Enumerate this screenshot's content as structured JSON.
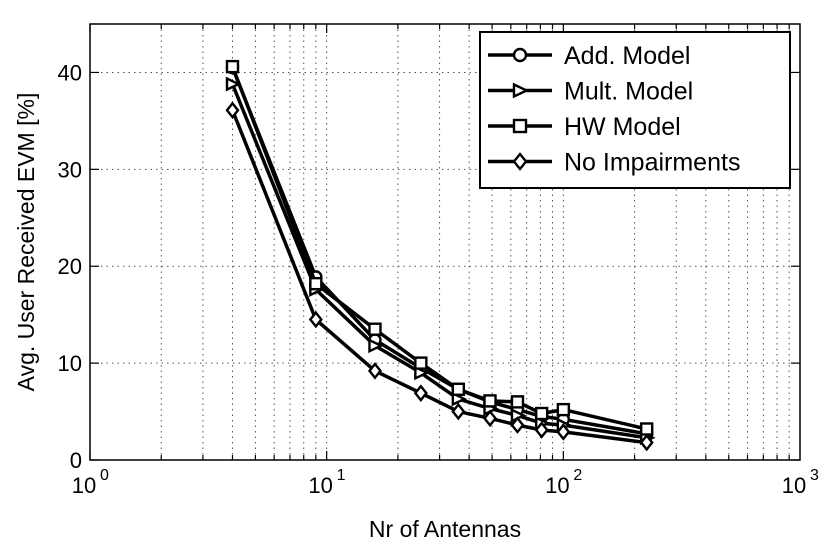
{
  "chart_data": {
    "type": "line",
    "title": "",
    "xlabel": "Nr of Antennas",
    "ylabel": "Avg. User Received EVM [%]",
    "xscale": "log",
    "xlim": [
      1,
      1000
    ],
    "ylim": [
      0,
      45
    ],
    "grid": true,
    "legend_position": "top-right",
    "x_tick_labels": [
      {
        "base": "10",
        "exp": "0"
      },
      {
        "base": "10",
        "exp": "1"
      },
      {
        "base": "10",
        "exp": "2"
      },
      {
        "base": "10",
        "exp": "3"
      }
    ],
    "y_ticks": [
      0,
      10,
      20,
      30,
      40
    ],
    "x": [
      4,
      9,
      16,
      25,
      36,
      49,
      64,
      81,
      100,
      225
    ],
    "series": [
      {
        "name": "Add. Model",
        "marker": "circle",
        "color": "#000000",
        "values": [
          40.5,
          18.9,
          12.4,
          9.5,
          7.3,
          6.0,
          5.2,
          4.5,
          4.2,
          2.7
        ]
      },
      {
        "name": "Mult. Model",
        "marker": "triangle-right",
        "color": "#000000",
        "values": [
          38.8,
          17.6,
          11.8,
          9.0,
          6.3,
          5.3,
          4.6,
          3.8,
          3.6,
          2.3
        ]
      },
      {
        "name": "HW Model",
        "marker": "square",
        "color": "#000000",
        "values": [
          40.6,
          18.2,
          13.5,
          10.0,
          7.3,
          6.1,
          6.0,
          4.8,
          5.2,
          3.2
        ]
      },
      {
        "name": "No Impairments",
        "marker": "diamond",
        "color": "#000000",
        "values": [
          36.1,
          14.5,
          9.2,
          6.9,
          5.0,
          4.3,
          3.6,
          3.1,
          2.9,
          1.8
        ]
      }
    ]
  }
}
